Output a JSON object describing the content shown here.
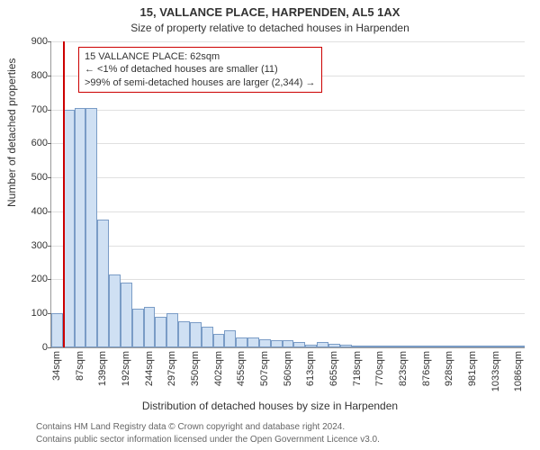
{
  "title": "15, VALLANCE PLACE, HARPENDEN, AL5 1AX",
  "subtitle": "Size of property relative to detached houses in Harpenden",
  "ylabel": "Number of detached properties",
  "xlabel": "Distribution of detached houses by size in Harpenden",
  "footer1": "Contains HM Land Registry data © Crown copyright and database right 2024.",
  "footer2": "Contains public sector information licensed under the Open Government Licence v3.0.",
  "title_fontsize": 13,
  "subtitle_fontsize": 12,
  "label_fontsize": 12,
  "tick_fontsize": 11,
  "footer_fontsize": 10,
  "chart": {
    "type": "histogram",
    "background_color": "#ffffff",
    "grid_color": "#e0e0e0",
    "axis_color": "#999999",
    "tick_color": "#666666",
    "text_color": "#333333",
    "bar_fill": "#cfe0f3",
    "bar_border": "#7a9cc6",
    "marker_color": "#cc0000",
    "ylim": [
      0,
      900
    ],
    "ytick_step": 100,
    "x_start": 34,
    "x_end": 1112,
    "x_bin_width": 26.3,
    "x_tick_step": 52.6,
    "marker_x": 62,
    "values": [
      100,
      700,
      705,
      705,
      375,
      215,
      190,
      115,
      120,
      90,
      100,
      78,
      75,
      60,
      40,
      50,
      30,
      30,
      25,
      22,
      20,
      15,
      8,
      15,
      10,
      8,
      5,
      5,
      6,
      4,
      4,
      2,
      4,
      2,
      2,
      2,
      1,
      1,
      1,
      1,
      1
    ],
    "xtick_labels": [
      "34sqm",
      "87sqm",
      "139sqm",
      "192sqm",
      "244sqm",
      "297sqm",
      "350sqm",
      "402sqm",
      "455sqm",
      "507sqm",
      "560sqm",
      "613sqm",
      "665sqm",
      "718sqm",
      "770sqm",
      "823sqm",
      "876sqm",
      "928sqm",
      "981sqm",
      "1033sqm",
      "1086sqm"
    ]
  },
  "annotation": {
    "border_color": "#cc0000",
    "lines": [
      "15 VALLANCE PLACE: 62sqm",
      "← <1% of detached houses are smaller (11)",
      ">99% of semi-detached houses are larger (2,344) →"
    ]
  }
}
